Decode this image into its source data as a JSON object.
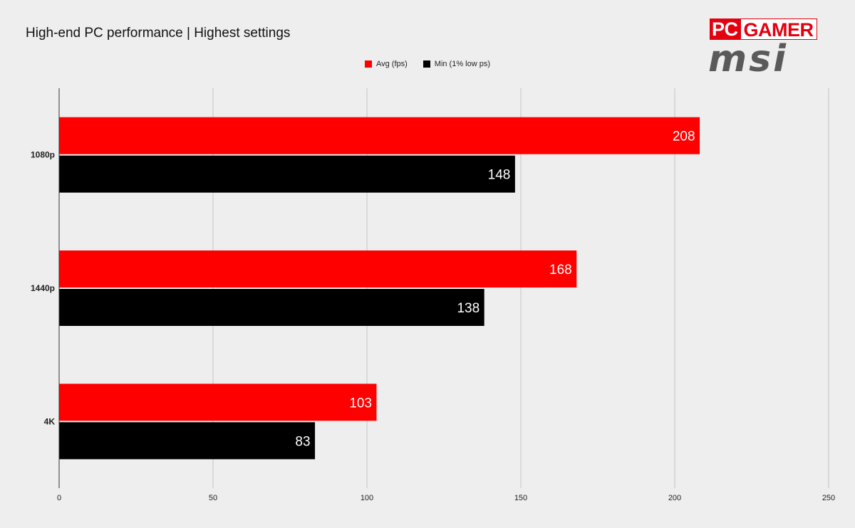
{
  "chart_data": {
    "type": "bar",
    "orientation": "horizontal",
    "title": "High-end PC performance | Highest settings",
    "categories": [
      "1080p",
      "1440p",
      "4K"
    ],
    "series": [
      {
        "name": "Avg (fps)",
        "color": "#ff0000",
        "values": [
          208,
          168,
          103
        ]
      },
      {
        "name": "Min (1% low ps)",
        "color": "#000000",
        "values": [
          148,
          138,
          83
        ]
      }
    ],
    "xlim": [
      0,
      250
    ],
    "ticks": [
      0,
      50,
      100,
      150,
      200,
      250
    ],
    "grid": true,
    "legend_position": "top-center",
    "data_labels": true
  },
  "branding": {
    "logo_pc": "PC",
    "logo_gamer": "GAMER",
    "logo_brand": "msi"
  }
}
